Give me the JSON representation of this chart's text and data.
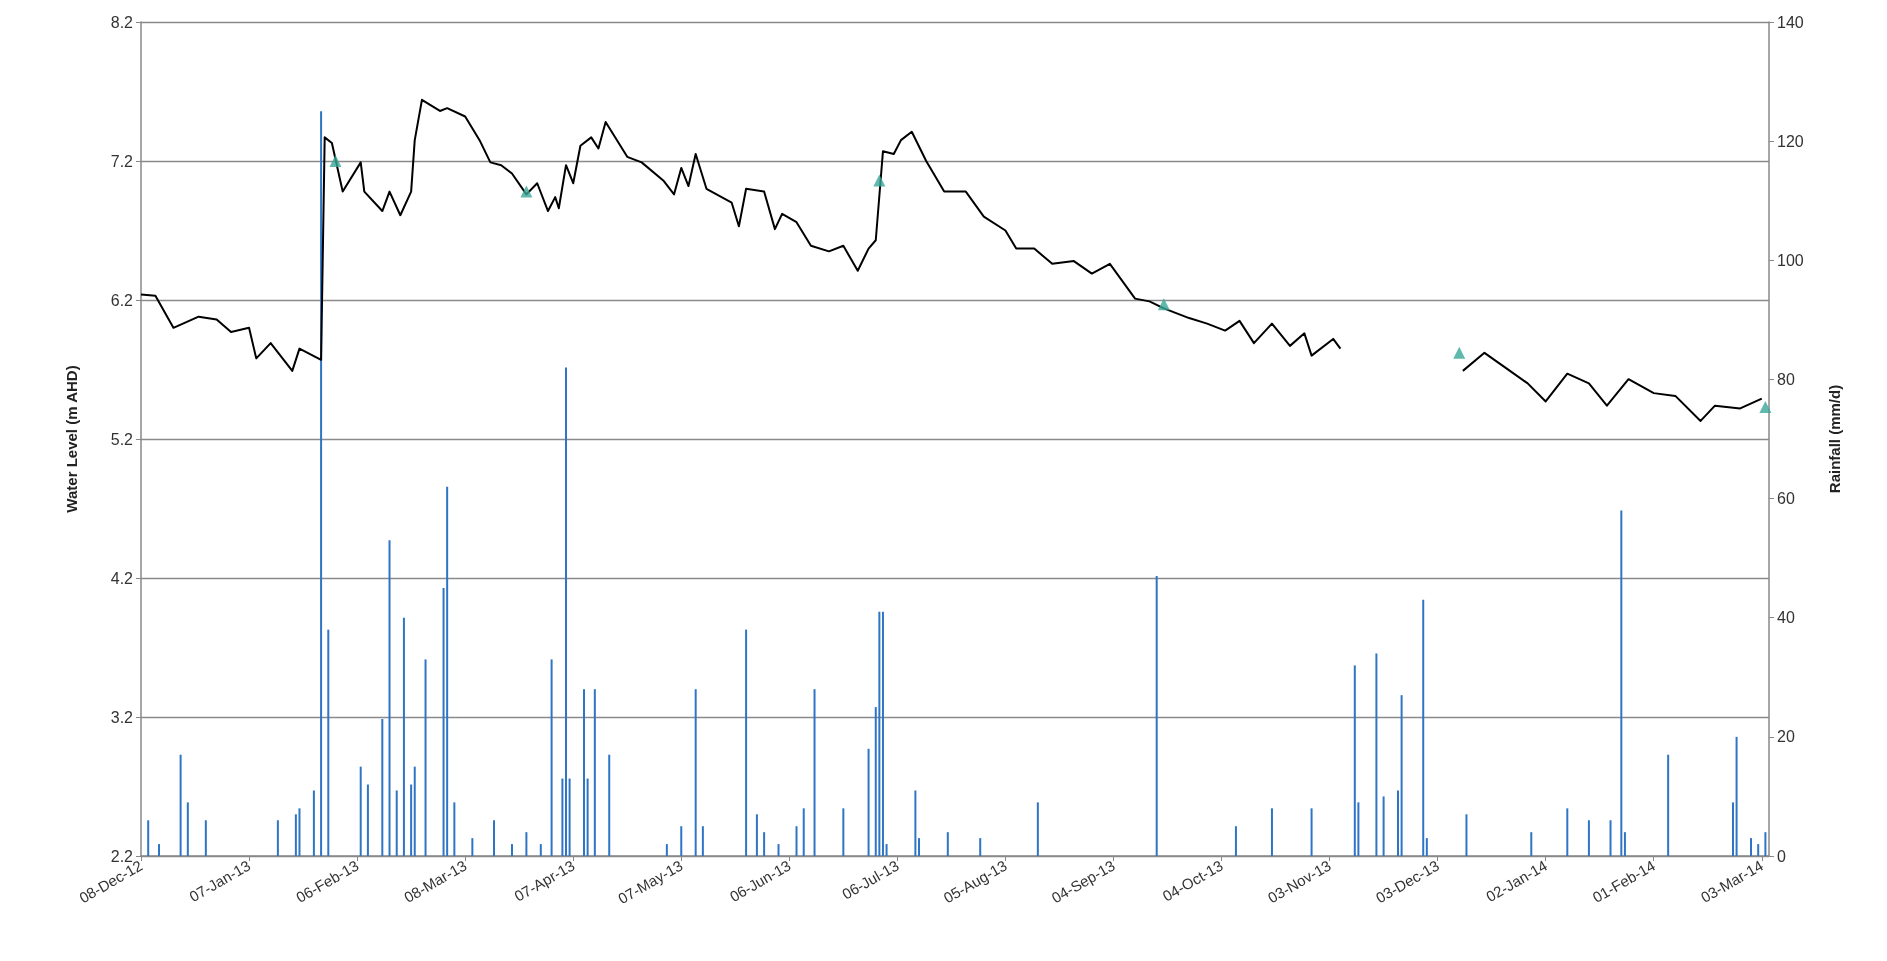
{
  "chart_data": {
    "type": "line",
    "xlabel": null,
    "ylabel": "Water Level (m AHD)",
    "y2label": "Rainfall (mm/d)",
    "xlim": [
      "2012-12-08",
      "2014-03-05"
    ],
    "xticks": [
      {
        "value": "2012-12-08",
        "label": "08-Dec-12"
      },
      {
        "value": "2013-01-07",
        "label": "07-Jan-13"
      },
      {
        "value": "2013-02-06",
        "label": "06-Feb-13"
      },
      {
        "value": "2013-03-08",
        "label": "08-Mar-13"
      },
      {
        "value": "2013-04-07",
        "label": "07-Apr-13"
      },
      {
        "value": "2013-05-07",
        "label": "07-May-13"
      },
      {
        "value": "2013-06-06",
        "label": "06-Jun-13"
      },
      {
        "value": "2013-07-06",
        "label": "06-Jul-13"
      },
      {
        "value": "2013-08-05",
        "label": "05-Aug-13"
      },
      {
        "value": "2013-09-04",
        "label": "04-Sep-13"
      },
      {
        "value": "2013-10-04",
        "label": "04-Oct-13"
      },
      {
        "value": "2013-11-03",
        "label": "03-Nov-13"
      },
      {
        "value": "2013-12-03",
        "label": "03-Dec-13"
      },
      {
        "value": "2014-01-02",
        "label": "02-Jan-14"
      },
      {
        "value": "2014-02-01",
        "label": "01-Feb-14"
      },
      {
        "value": "2014-03-03",
        "label": "03-Mar-14"
      }
    ],
    "ylim": [
      2.2,
      8.2
    ],
    "yticks": [
      2.2,
      3.2,
      4.2,
      5.2,
      6.2,
      7.2,
      8.2
    ],
    "y2lim": [
      0,
      140
    ],
    "y2ticks": [
      0,
      20,
      40,
      60,
      80,
      100,
      120,
      140
    ],
    "grid": "y",
    "series": [
      {
        "type": "bar",
        "axis": "y2",
        "color": "#2e75c6",
        "x": [
          "2012-12-10",
          "2012-12-13",
          "2012-12-19",
          "2012-12-21",
          "2012-12-26",
          "2013-01-15",
          "2013-01-20",
          "2013-01-21",
          "2013-01-25",
          "2013-01-27",
          "2013-01-29",
          "2013-02-07",
          "2013-02-09",
          "2013-02-13",
          "2013-02-15",
          "2013-02-17",
          "2013-02-19",
          "2013-02-21",
          "2013-02-22",
          "2013-02-25",
          "2013-03-02",
          "2013-03-03",
          "2013-03-05",
          "2013-03-10",
          "2013-03-16",
          "2013-03-21",
          "2013-03-25",
          "2013-03-29",
          "2013-04-01",
          "2013-04-04",
          "2013-04-05",
          "2013-04-06",
          "2013-04-10",
          "2013-04-11",
          "2013-04-13",
          "2013-04-17",
          "2013-05-03",
          "2013-05-07",
          "2013-05-11",
          "2013-05-13",
          "2013-05-25",
          "2013-05-28",
          "2013-05-30",
          "2013-06-03",
          "2013-06-08",
          "2013-06-10",
          "2013-06-13",
          "2013-06-21",
          "2013-06-28",
          "2013-06-30",
          "2013-07-01",
          "2013-07-02",
          "2013-07-03",
          "2013-07-11",
          "2013-07-12",
          "2013-07-20",
          "2013-07-29",
          "2013-08-14",
          "2013-09-16",
          "2013-10-08",
          "2013-10-18",
          "2013-10-29",
          "2013-11-10",
          "2013-11-11",
          "2013-11-16",
          "2013-11-18",
          "2013-11-22",
          "2013-11-23",
          "2013-11-29",
          "2013-11-30",
          "2013-12-11",
          "2013-12-29",
          "2014-01-08",
          "2014-01-14",
          "2014-01-20",
          "2014-01-23",
          "2014-01-24",
          "2014-02-05",
          "2014-02-23",
          "2014-02-24",
          "2014-02-28",
          "2014-03-02",
          "2014-03-04"
        ],
        "values": [
          6,
          2,
          17,
          9,
          6,
          6,
          7,
          8,
          11,
          125,
          38,
          15,
          12,
          23,
          53,
          11,
          40,
          12,
          15,
          33,
          45,
          62,
          9,
          3,
          6,
          2,
          4,
          2,
          33,
          13,
          82,
          13,
          28,
          13,
          28,
          17,
          2,
          5,
          28,
          5,
          38,
          7,
          4,
          2,
          5,
          8,
          28,
          8,
          18,
          25,
          41,
          41,
          2,
          11,
          3,
          4,
          3,
          9,
          47,
          5,
          8,
          8,
          32,
          9,
          34,
          10,
          11,
          27,
          43,
          3,
          7,
          4,
          8,
          6,
          6,
          58,
          4,
          17,
          9,
          20,
          3,
          2,
          4
        ]
      },
      {
        "color": "#000000",
        "marker": "none",
        "x": [
          "2012-12-08",
          "2012-12-12",
          "2012-12-17",
          "2012-12-24",
          "2012-12-29",
          "2013-01-02",
          "2013-01-07",
          "2013-01-09",
          "2013-01-13",
          "2013-01-19",
          "2013-01-21",
          "2013-01-27",
          "2013-01-28",
          "2013-01-30",
          "2013-02-02",
          "2013-02-07",
          "2013-02-08",
          "2013-02-13",
          "2013-02-15",
          "2013-02-18",
          "2013-02-21",
          "2013-02-22",
          "2013-02-24",
          "2013-03-01",
          "2013-03-03",
          "2013-03-08",
          "2013-03-12",
          "2013-03-15",
          "2013-03-18",
          "2013-03-21",
          "2013-03-25",
          "2013-03-28",
          "2013-03-31",
          "2013-04-02",
          "2013-04-03",
          "2013-04-05",
          "2013-04-07",
          "2013-04-09",
          "2013-04-12",
          "2013-04-14",
          "2013-04-16",
          "2013-04-22",
          "2013-04-26",
          "2013-05-02",
          "2013-05-05",
          "2013-05-07",
          "2013-05-09",
          "2013-05-11",
          "2013-05-14",
          "2013-05-21",
          "2013-05-23",
          "2013-05-25",
          "2013-05-30",
          "2013-06-02",
          "2013-06-04",
          "2013-06-08",
          "2013-06-12",
          "2013-06-17",
          "2013-06-21",
          "2013-06-25",
          "2013-06-28",
          "2013-06-30",
          "2013-07-02",
          "2013-07-05",
          "2013-07-07",
          "2013-07-10",
          "2013-07-14",
          "2013-07-19",
          "2013-07-25",
          "2013-07-30",
          "2013-08-05",
          "2013-08-08",
          "2013-08-13",
          "2013-08-18",
          "2013-08-24",
          "2013-08-29",
          "2013-09-03",
          "2013-09-10",
          "2013-09-14",
          "2013-09-18",
          "2013-09-25",
          "2013-09-30",
          "2013-10-05",
          "2013-10-09",
          "2013-10-13",
          "2013-10-18",
          "2013-10-23",
          "2013-10-27",
          "2013-10-29",
          "2013-11-04",
          "2013-11-06",
          "2013-11-23",
          "2013-12-10",
          "2013-12-16",
          "2013-12-22",
          "2013-12-28",
          "2014-01-02",
          "2014-01-08",
          "2014-01-14",
          "2014-01-19",
          "2014-01-25",
          "2014-02-01",
          "2014-02-07",
          "2014-02-14",
          "2014-02-18",
          "2014-02-25",
          "2014-03-03"
        ],
        "values": [
          6.24,
          6.23,
          6.0,
          6.08,
          6.06,
          5.97,
          6.0,
          5.78,
          5.89,
          5.69,
          5.85,
          5.77,
          7.37,
          7.33,
          6.98,
          7.19,
          6.98,
          6.84,
          6.98,
          6.81,
          6.98,
          7.35,
          7.64,
          7.56,
          7.58,
          7.52,
          7.35,
          7.19,
          7.17,
          7.11,
          6.96,
          7.04,
          6.84,
          6.94,
          6.86,
          7.17,
          7.04,
          7.31,
          7.37,
          7.29,
          7.48,
          7.23,
          7.19,
          7.06,
          6.96,
          7.15,
          7.02,
          7.25,
          7.0,
          6.9,
          6.73,
          7.0,
          6.98,
          6.71,
          6.82,
          6.76,
          6.59,
          6.55,
          6.59,
          6.41,
          6.57,
          6.63,
          7.27,
          7.25,
          7.35,
          7.41,
          7.2,
          6.98,
          6.98,
          6.8,
          6.7,
          6.57,
          6.57,
          6.46,
          6.48,
          6.39,
          6.46,
          6.21,
          6.19,
          6.14,
          6.07,
          6.03,
          5.98,
          6.05,
          5.89,
          6.03,
          5.87,
          5.96,
          5.8,
          5.92,
          5.85,
          null,
          5.69,
          5.82,
          5.71,
          5.6,
          5.47,
          5.67,
          5.6,
          5.44,
          5.63,
          5.53,
          5.51,
          5.33,
          5.44,
          5.42,
          5.49
        ]
      },
      {
        "type": "scatter",
        "color": "#3aa89a",
        "marker": "triangle",
        "x": [
          "2013-01-31",
          "2013-03-25",
          "2013-07-01",
          "2013-09-18",
          "2013-12-09",
          "2014-03-04"
        ],
        "values": [
          7.2,
          6.98,
          7.06,
          6.17,
          5.82,
          5.43
        ]
      }
    ]
  }
}
